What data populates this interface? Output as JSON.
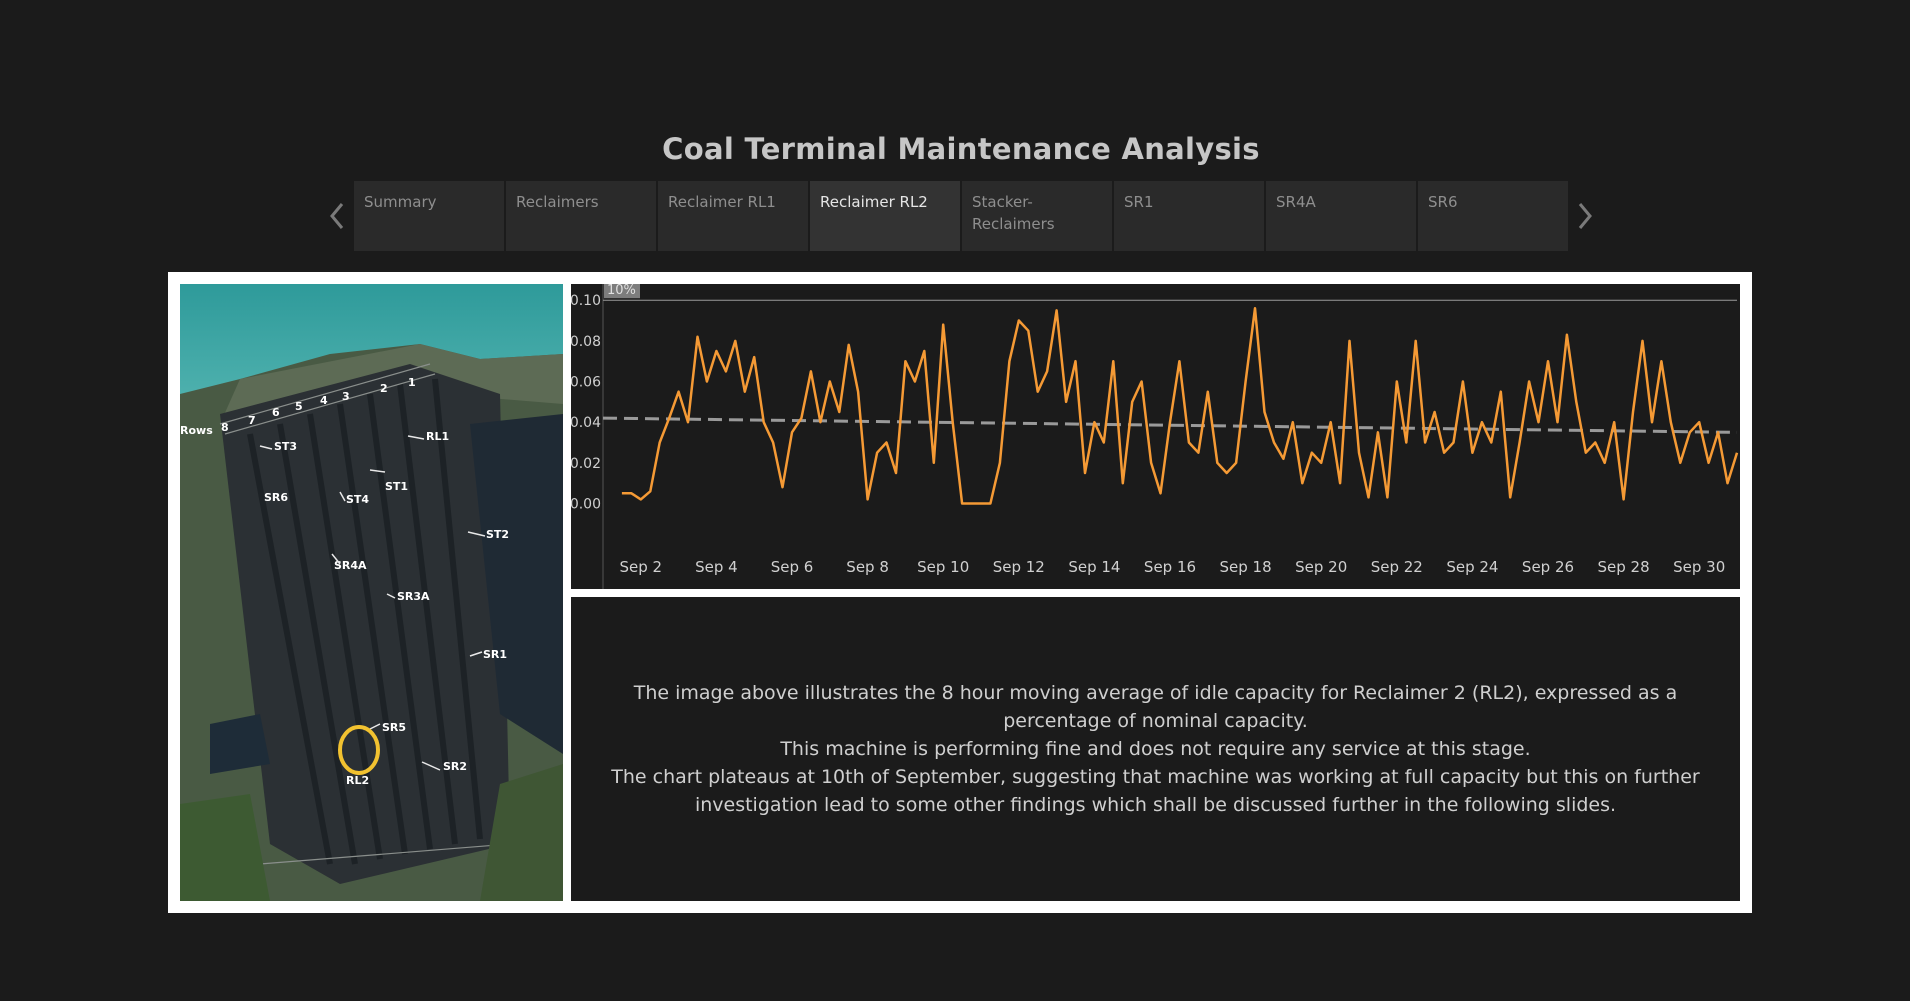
{
  "title": "Coal Terminal Maintenance Analysis",
  "tabs": [
    {
      "label": "Summary",
      "active": false
    },
    {
      "label": "Reclaimers",
      "active": false
    },
    {
      "label": "Reclaimer RL1",
      "active": false
    },
    {
      "label": "Reclaimer RL2",
      "active": true
    },
    {
      "label": "Stacker-Reclaimers",
      "active": false
    },
    {
      "label": "SR1",
      "active": false
    },
    {
      "label": "SR4A",
      "active": false
    },
    {
      "label": "SR6",
      "active": false
    }
  ],
  "nav": {
    "prev_icon": "chevron-left-icon",
    "next_icon": "chevron-right-icon"
  },
  "map": {
    "rows_label": "Rows",
    "row_numbers": [
      "8",
      "7",
      "6",
      "5",
      "4",
      "3",
      "2",
      "1"
    ],
    "machine_labels": [
      "RL1",
      "ST3",
      "ST1",
      "SR6",
      "ST4",
      "ST2",
      "SR4A",
      "SR3A",
      "SR1",
      "SR5",
      "SR2",
      "RL2"
    ],
    "highlight_color": "#f2c230",
    "highlighted_machine": "RL2"
  },
  "description": {
    "lines": [
      "The image above illustrates the 8 hour moving average of idle capacity for Reclaimer 2 (RL2), expressed as a percentage of nominal capacity.",
      "This machine is performing fine and does not require any service at this stage.",
      "The chart plateaus at 10th of September, suggesting that machine was working at full capacity but this on further investigation lead to some other findings which shall be discussed further in the following slides."
    ]
  },
  "chart_data": {
    "type": "line",
    "title": "",
    "xlabel": "",
    "ylabel": "",
    "ylim": [
      -0.015,
      0.106
    ],
    "xlim": [
      "2019-09-01",
      "2019-10-01"
    ],
    "x_ticks": [
      "Sep 2",
      "Sep 4",
      "Sep 6",
      "Sep 8",
      "Sep 10",
      "Sep 12",
      "Sep 14",
      "Sep 16",
      "Sep 18",
      "Sep 20",
      "Sep 22",
      "Sep 24",
      "Sep 26",
      "Sep 28",
      "Sep 30"
    ],
    "y_ticks": [
      "0.00",
      "0.02",
      "0.04",
      "0.06",
      "0.08",
      "0.10"
    ],
    "reference_line": {
      "label": "10%",
      "value": 0.1,
      "color": "#9a9a9a"
    },
    "trend_line": {
      "start": 0.042,
      "end": 0.035,
      "color": "#9a9a9a"
    },
    "series": [
      {
        "color": "#f59a35",
        "points": [
          [
            "2019-09-01 12:00",
            0.005
          ],
          [
            "2019-09-01 18:00",
            0.005
          ],
          [
            "2019-09-02 00:00",
            0.002
          ],
          [
            "2019-09-02 06:00",
            0.006
          ],
          [
            "2019-09-02 12:00",
            0.03
          ],
          [
            "2019-09-02 18:00",
            0.042
          ],
          [
            "2019-09-03 00:00",
            0.055
          ],
          [
            "2019-09-03 06:00",
            0.04
          ],
          [
            "2019-09-03 12:00",
            0.082
          ],
          [
            "2019-09-03 18:00",
            0.06
          ],
          [
            "2019-09-04 00:00",
            0.075
          ],
          [
            "2019-09-04 06:00",
            0.065
          ],
          [
            "2019-09-04 12:00",
            0.08
          ],
          [
            "2019-09-04 18:00",
            0.055
          ],
          [
            "2019-09-05 00:00",
            0.072
          ],
          [
            "2019-09-05 06:00",
            0.04
          ],
          [
            "2019-09-05 12:00",
            0.03
          ],
          [
            "2019-09-05 18:00",
            0.008
          ],
          [
            "2019-09-06 00:00",
            0.035
          ],
          [
            "2019-09-06 06:00",
            0.042
          ],
          [
            "2019-09-06 12:00",
            0.065
          ],
          [
            "2019-09-06 18:00",
            0.04
          ],
          [
            "2019-09-07 00:00",
            0.06
          ],
          [
            "2019-09-07 06:00",
            0.045
          ],
          [
            "2019-09-07 12:00",
            0.078
          ],
          [
            "2019-09-07 18:00",
            0.055
          ],
          [
            "2019-09-08 00:00",
            0.002
          ],
          [
            "2019-09-08 06:00",
            0.025
          ],
          [
            "2019-09-08 12:00",
            0.03
          ],
          [
            "2019-09-08 18:00",
            0.015
          ],
          [
            "2019-09-09 00:00",
            0.07
          ],
          [
            "2019-09-09 06:00",
            0.06
          ],
          [
            "2019-09-09 12:00",
            0.075
          ],
          [
            "2019-09-09 18:00",
            0.02
          ],
          [
            "2019-09-10 00:00",
            0.088
          ],
          [
            "2019-09-10 06:00",
            0.04
          ],
          [
            "2019-09-10 12:00",
            0.0
          ],
          [
            "2019-09-11 00:00",
            0.0
          ],
          [
            "2019-09-11 06:00",
            0.0
          ],
          [
            "2019-09-11 12:00",
            0.02
          ],
          [
            "2019-09-11 18:00",
            0.07
          ],
          [
            "2019-09-12 00:00",
            0.09
          ],
          [
            "2019-09-12 06:00",
            0.085
          ],
          [
            "2019-09-12 12:00",
            0.055
          ],
          [
            "2019-09-12 18:00",
            0.065
          ],
          [
            "2019-09-13 00:00",
            0.095
          ],
          [
            "2019-09-13 06:00",
            0.05
          ],
          [
            "2019-09-13 12:00",
            0.07
          ],
          [
            "2019-09-13 18:00",
            0.015
          ],
          [
            "2019-09-14 00:00",
            0.04
          ],
          [
            "2019-09-14 06:00",
            0.03
          ],
          [
            "2019-09-14 12:00",
            0.07
          ],
          [
            "2019-09-14 18:00",
            0.01
          ],
          [
            "2019-09-15 00:00",
            0.05
          ],
          [
            "2019-09-15 06:00",
            0.06
          ],
          [
            "2019-09-15 12:00",
            0.02
          ],
          [
            "2019-09-15 18:00",
            0.005
          ],
          [
            "2019-09-16 00:00",
            0.04
          ],
          [
            "2019-09-16 06:00",
            0.07
          ],
          [
            "2019-09-16 12:00",
            0.03
          ],
          [
            "2019-09-16 18:00",
            0.025
          ],
          [
            "2019-09-17 00:00",
            0.055
          ],
          [
            "2019-09-17 06:00",
            0.02
          ],
          [
            "2019-09-17 12:00",
            0.015
          ],
          [
            "2019-09-17 18:00",
            0.02
          ],
          [
            "2019-09-18 00:00",
            0.06
          ],
          [
            "2019-09-18 06:00",
            0.096
          ],
          [
            "2019-09-18 12:00",
            0.045
          ],
          [
            "2019-09-18 18:00",
            0.03
          ],
          [
            "2019-09-19 00:00",
            0.022
          ],
          [
            "2019-09-19 06:00",
            0.04
          ],
          [
            "2019-09-19 12:00",
            0.01
          ],
          [
            "2019-09-19 18:00",
            0.025
          ],
          [
            "2019-09-20 00:00",
            0.02
          ],
          [
            "2019-09-20 06:00",
            0.04
          ],
          [
            "2019-09-20 12:00",
            0.01
          ],
          [
            "2019-09-20 18:00",
            0.08
          ],
          [
            "2019-09-21 00:00",
            0.025
          ],
          [
            "2019-09-21 06:00",
            0.003
          ],
          [
            "2019-09-21 12:00",
            0.035
          ],
          [
            "2019-09-21 18:00",
            0.003
          ],
          [
            "2019-09-22 00:00",
            0.06
          ],
          [
            "2019-09-22 06:00",
            0.03
          ],
          [
            "2019-09-22 12:00",
            0.08
          ],
          [
            "2019-09-22 18:00",
            0.03
          ],
          [
            "2019-09-23 00:00",
            0.045
          ],
          [
            "2019-09-23 06:00",
            0.025
          ],
          [
            "2019-09-23 12:00",
            0.03
          ],
          [
            "2019-09-23 18:00",
            0.06
          ],
          [
            "2019-09-24 00:00",
            0.025
          ],
          [
            "2019-09-24 06:00",
            0.04
          ],
          [
            "2019-09-24 12:00",
            0.03
          ],
          [
            "2019-09-24 18:00",
            0.055
          ],
          [
            "2019-09-25 00:00",
            0.003
          ],
          [
            "2019-09-25 06:00",
            0.03
          ],
          [
            "2019-09-25 12:00",
            0.06
          ],
          [
            "2019-09-25 18:00",
            0.04
          ],
          [
            "2019-09-26 00:00",
            0.07
          ],
          [
            "2019-09-26 06:00",
            0.04
          ],
          [
            "2019-09-26 12:00",
            0.083
          ],
          [
            "2019-09-26 18:00",
            0.05
          ],
          [
            "2019-09-27 00:00",
            0.025
          ],
          [
            "2019-09-27 06:00",
            0.03
          ],
          [
            "2019-09-27 12:00",
            0.02
          ],
          [
            "2019-09-27 18:00",
            0.04
          ],
          [
            "2019-09-28 00:00",
            0.002
          ],
          [
            "2019-09-28 06:00",
            0.045
          ],
          [
            "2019-09-28 12:00",
            0.08
          ],
          [
            "2019-09-28 18:00",
            0.04
          ],
          [
            "2019-09-29 00:00",
            0.07
          ],
          [
            "2019-09-29 06:00",
            0.04
          ],
          [
            "2019-09-29 12:00",
            0.02
          ],
          [
            "2019-09-29 18:00",
            0.035
          ],
          [
            "2019-09-30 00:00",
            0.04
          ],
          [
            "2019-09-30 06:00",
            0.02
          ],
          [
            "2019-09-30 12:00",
            0.035
          ],
          [
            "2019-09-30 18:00",
            0.01
          ],
          [
            "2019-10-01 00:00",
            0.025
          ]
        ]
      }
    ]
  }
}
